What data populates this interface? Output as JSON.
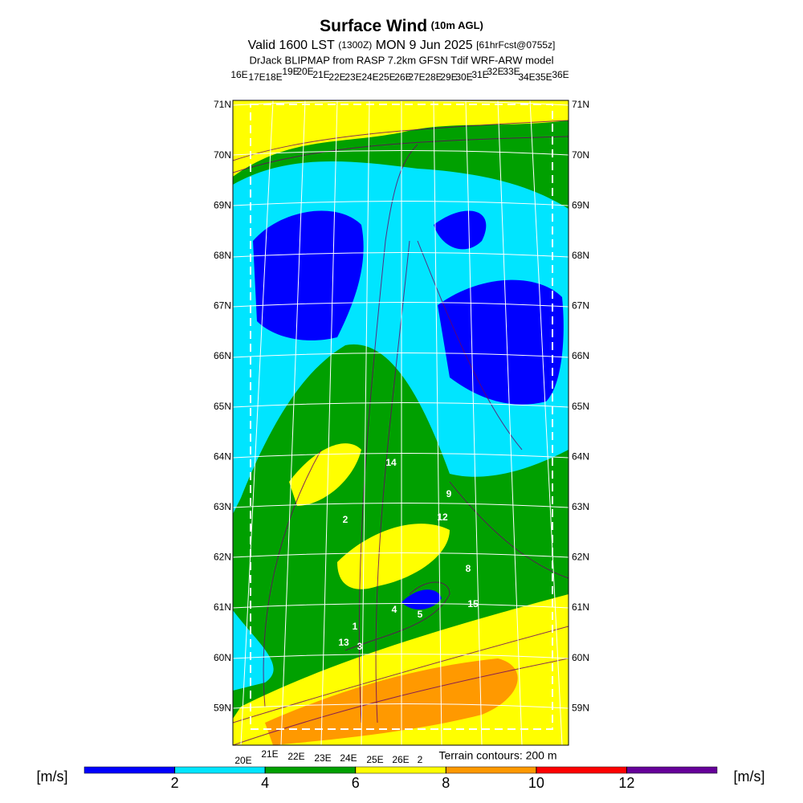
{
  "header": {
    "title": "Surface Wind",
    "title_note": "(10m AGL)",
    "valid": "Valid 1600 LST",
    "valid_utc": "(1300Z)",
    "date": "MON 9 Jun 2025",
    "forecast": "[61hrFcst@0755z]",
    "subtitle": "DrJack BLIPMAP from RASP 7.2km GFSN Tdif WRF-ARW model"
  },
  "map": {
    "top_lon_labels": [
      "16E",
      "17E",
      "18E",
      "19E",
      "20E",
      "21E",
      "22E",
      "23E",
      "24E",
      "25E",
      "26E",
      "27E",
      "28E",
      "29E",
      "30E",
      "31E",
      "32E",
      "33E",
      "34E",
      "35E",
      "36E"
    ],
    "lat_labels": [
      "71N",
      "70N",
      "69N",
      "68N",
      "67N",
      "66N",
      "65N",
      "64N",
      "63N",
      "62N",
      "61N",
      "60N",
      "59N"
    ],
    "bottom_lon_labels": [
      "20E",
      "21E",
      "22E",
      "23E",
      "24E",
      "25E",
      "26E",
      "2"
    ],
    "terrain_note": "Terrain contours: 200 m",
    "point_labels": [
      "14",
      "9",
      "12",
      "2",
      "8",
      "15",
      "4",
      "5",
      "1",
      "13",
      "3"
    ]
  },
  "colorbar": {
    "unit": "[m/s]",
    "lim": [
      0,
      14
    ],
    "ticks": [
      2,
      4,
      6,
      8,
      10,
      12
    ],
    "colors": [
      "#0000ff",
      "#00e5ff",
      "#00a000",
      "#ffff00",
      "#ff9900",
      "#ff0000",
      "#660099"
    ]
  }
}
